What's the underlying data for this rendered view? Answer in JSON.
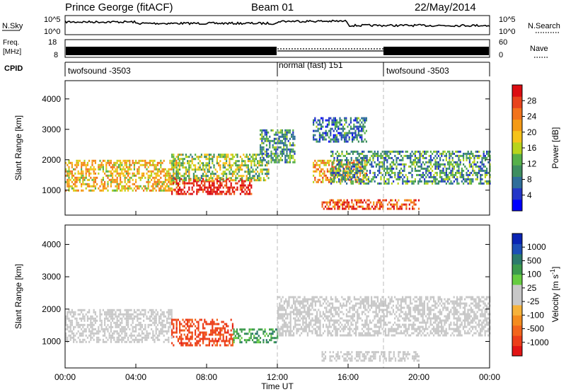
{
  "header": {
    "station": "Prince George (fitACF)",
    "beam": "Beam 01",
    "date": "22/May/2014"
  },
  "summary": {
    "nsky_label": "N.Sky",
    "nsearch_label": "N.Search",
    "freq_label_line1": "Freq.",
    "freq_label_line2": "[MHz]",
    "nave_label": "Nave",
    "cpid_label": "CPID",
    "nsky_ticks": [
      "10^5",
      "10^0"
    ],
    "nsearch_ticks": [
      "10^5",
      "10^0"
    ],
    "freq_ticks": [
      "18",
      "8"
    ],
    "nave_ticks": [
      "60",
      "0"
    ]
  },
  "chart_data": {
    "type": "heatmap",
    "xlabel": "Time UT",
    "x_ticks": [
      "00:00",
      "04:00",
      "08:00",
      "12:00",
      "16:00",
      "20:00",
      "00:00"
    ],
    "x_range_hours": [
      0,
      24
    ],
    "cpid_segments": [
      {
        "label": "twofsound -3503",
        "start_h": 0,
        "end_h": 12
      },
      {
        "label": "normal (fast) 151",
        "start_h": 12,
        "end_h": 18
      },
      {
        "label": "twofsound -3503",
        "start_h": 18,
        "end_h": 24
      }
    ],
    "panels": [
      {
        "name": "power",
        "ylabel": "Slant Range [km]",
        "y_ticks": [
          1000,
          2000,
          3000,
          4000
        ],
        "ylim": [
          180,
          4600
        ],
        "colorbar_label": "Power [dB]",
        "colorbar_ticks": [
          "28",
          "24",
          "20",
          "16",
          "12",
          "8",
          "4"
        ],
        "colorbar_colors": [
          "#0000ff",
          "#2436c8",
          "#2f6e9a",
          "#3e8e60",
          "#56b04a",
          "#b8d41c",
          "#f6c31a",
          "#f49a16",
          "#f2731c",
          "#e8431c",
          "#dc0d12"
        ]
      },
      {
        "name": "velocity",
        "ylabel": "Slant Range [km]",
        "y_ticks": [
          1000,
          2000,
          3000,
          4000
        ],
        "ylim": [
          180,
          4600
        ],
        "colorbar_label": "Velocity [m s^-1]",
        "colorbar_ticks": [
          "1000",
          "500",
          "100",
          "25",
          "-25",
          "-100",
          "-500",
          "-1000"
        ],
        "colorbar_colors": [
          "#0a24b4",
          "#1d4fb7",
          "#2c7a6c",
          "#3c9a4c",
          "#66cc40",
          "#c8c8c8",
          "#c8c8c8",
          "#f6b23a",
          "#f48c1e",
          "#f2651c",
          "#ec3e1a",
          "#e21414"
        ]
      }
    ],
    "echo_regions": [
      {
        "panel": "power",
        "t0": 0.0,
        "t1": 6.5,
        "r0": 1000,
        "r1": 2000,
        "level": 18
      },
      {
        "panel": "power",
        "t0": 6.0,
        "t1": 10.5,
        "r0": 850,
        "r1": 1400,
        "level": 28
      },
      {
        "panel": "power",
        "t0": 6.0,
        "t1": 11.5,
        "r0": 1300,
        "r1": 2200,
        "level": 14
      },
      {
        "panel": "power",
        "t0": 11.0,
        "t1": 13.0,
        "r0": 1900,
        "r1": 3000,
        "level": 10
      },
      {
        "panel": "power",
        "t0": 14.0,
        "t1": 17.0,
        "r0": 1300,
        "r1": 2000,
        "level": 20
      },
      {
        "panel": "power",
        "t0": 14.5,
        "t1": 20.0,
        "r0": 400,
        "r1": 700,
        "level": 24
      },
      {
        "panel": "power",
        "t0": 15.0,
        "t1": 24.0,
        "r0": 1200,
        "r1": 2300,
        "level": 10
      },
      {
        "panel": "power",
        "t0": 14.0,
        "t1": 17.0,
        "r0": 2600,
        "r1": 3400,
        "level": 8
      },
      {
        "panel": "velocity",
        "t0": 0.0,
        "t1": 6.0,
        "r0": 1000,
        "r1": 2000,
        "level": 0
      },
      {
        "panel": "velocity",
        "t0": 6.0,
        "t1": 9.5,
        "r0": 900,
        "r1": 1700,
        "level": -600
      },
      {
        "panel": "velocity",
        "t0": 9.5,
        "t1": 12.0,
        "r0": 1000,
        "r1": 1400,
        "level": 150
      },
      {
        "panel": "velocity",
        "t0": 12.0,
        "t1": 24.0,
        "r0": 1200,
        "r1": 2400,
        "level": 0
      },
      {
        "panel": "velocity",
        "t0": 14.5,
        "t1": 20.0,
        "r0": 400,
        "r1": 700,
        "level": 0
      }
    ]
  }
}
